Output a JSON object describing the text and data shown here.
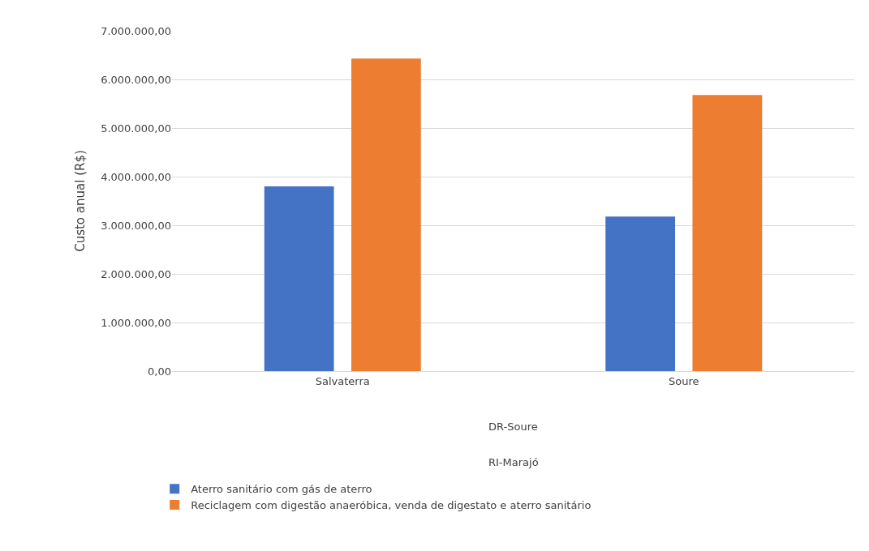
{
  "chart_data": {
    "type": "bar",
    "categories": [
      "Salvaterra",
      "Soure"
    ],
    "series": [
      {
        "name": "Aterro sanitário com gás de aterro",
        "color": "#4472c4",
        "values": [
          3800000,
          3180000
        ]
      },
      {
        "name": "Reciclagem com digestão anaeróbica, venda de digestato e aterro sanitário",
        "color": "#ed7d31",
        "values": [
          6430000,
          5680000
        ]
      }
    ],
    "ylabel": "Custo anual (R$)",
    "ylim": [
      0,
      7000000
    ],
    "yticks": [
      {
        "value": 0,
        "label": "0,00"
      },
      {
        "value": 1000000,
        "label": "1.000.000,00"
      },
      {
        "value": 2000000,
        "label": "2.000.000,00"
      },
      {
        "value": 3000000,
        "label": "3.000.000,00"
      },
      {
        "value": 4000000,
        "label": "4.000.000,00"
      },
      {
        "value": 5000000,
        "label": "5.000.000,00"
      },
      {
        "value": 6000000,
        "label": "6.000.000,00"
      },
      {
        "value": 7000000,
        "label": "7.000.000,00"
      }
    ],
    "annotations": [
      "DR-Soure",
      "RI-Marajó"
    ],
    "grid": "y",
    "legend": "bottom"
  }
}
